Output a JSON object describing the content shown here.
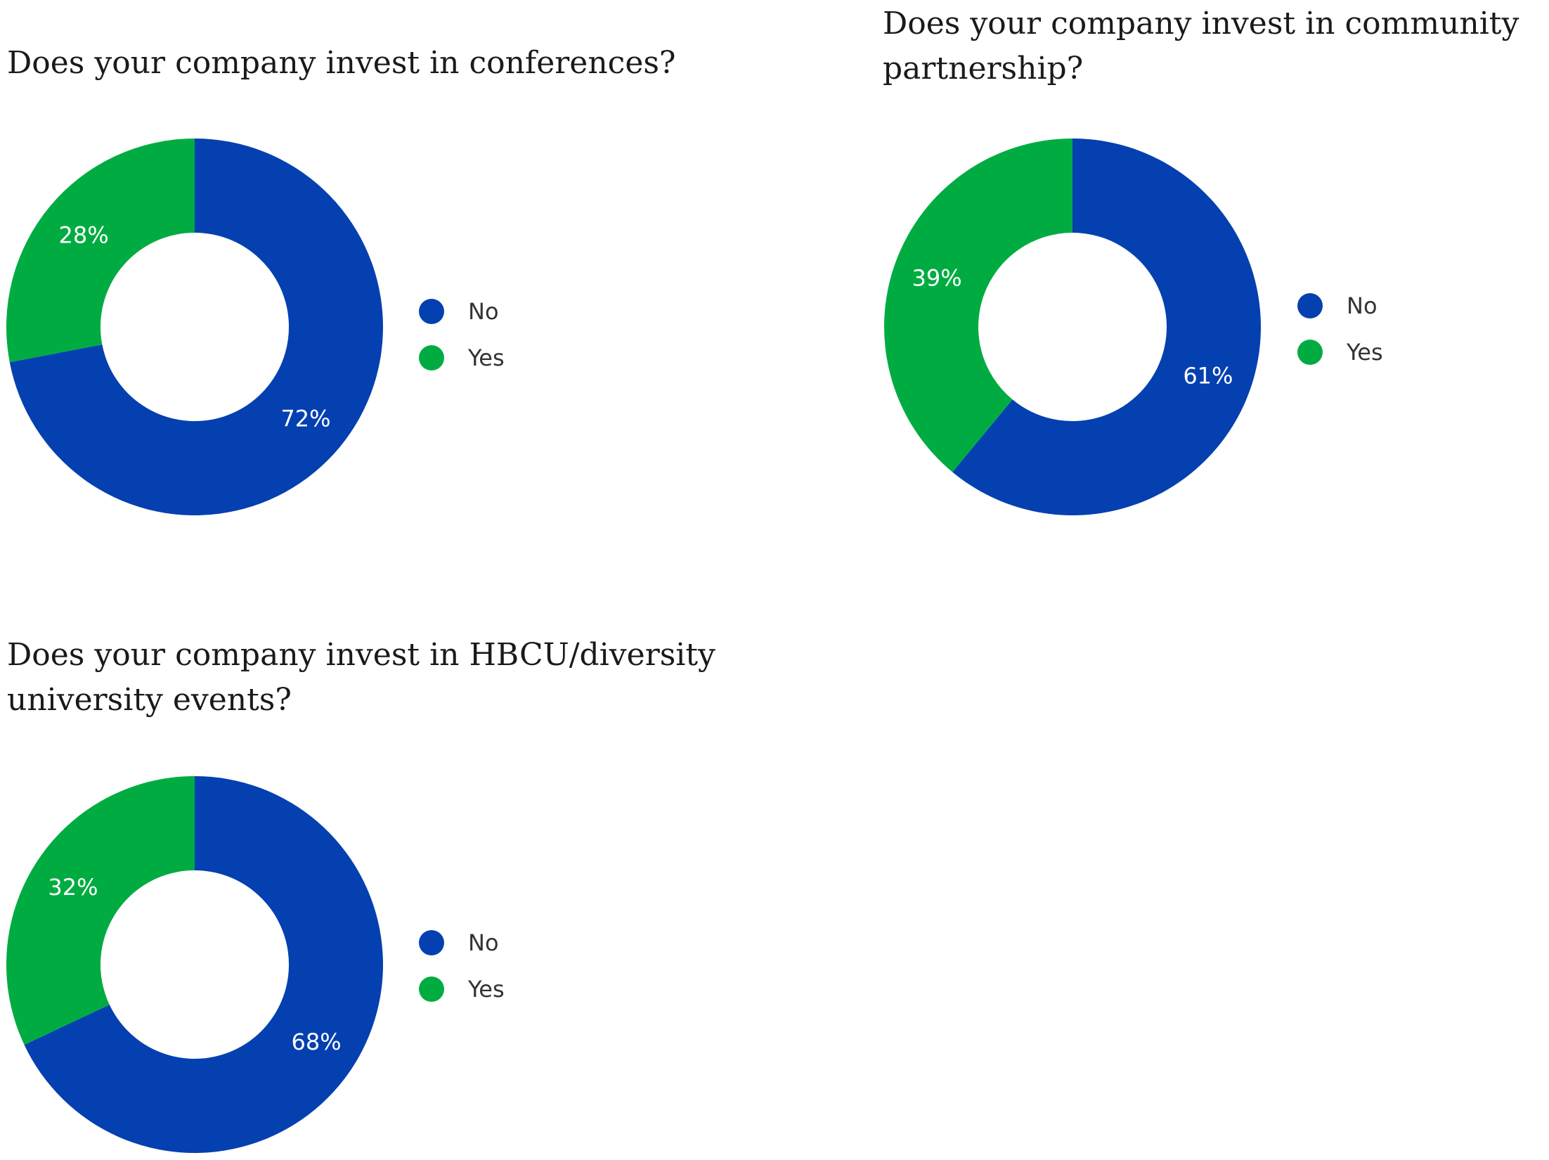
{
  "colors": {
    "No": "#0540b0",
    "Yes": "#00ac41"
  },
  "chart_data": [
    {
      "type": "pie",
      "title": "Does your company invest in conferences?",
      "categories": [
        "No",
        "Yes"
      ],
      "values": [
        72,
        28
      ],
      "value_labels": [
        "72%",
        "28%"
      ],
      "legend": [
        "No",
        "Yes"
      ],
      "legend_position": "right",
      "hole": true
    },
    {
      "type": "pie",
      "title": "Does your company invest in community partnership?",
      "categories": [
        "No",
        "Yes"
      ],
      "values": [
        61,
        39
      ],
      "value_labels": [
        "61%",
        "39%"
      ],
      "legend": [
        "No",
        "Yes"
      ],
      "legend_position": "right",
      "hole": true
    },
    {
      "type": "pie",
      "title": "Does your company invest in HBCU/diversity university events?",
      "categories": [
        "No",
        "Yes"
      ],
      "values": [
        68,
        32
      ],
      "value_labels": [
        "68%",
        "32%"
      ],
      "legend": [
        "No",
        "Yes"
      ],
      "legend_position": "right",
      "hole": true
    }
  ]
}
